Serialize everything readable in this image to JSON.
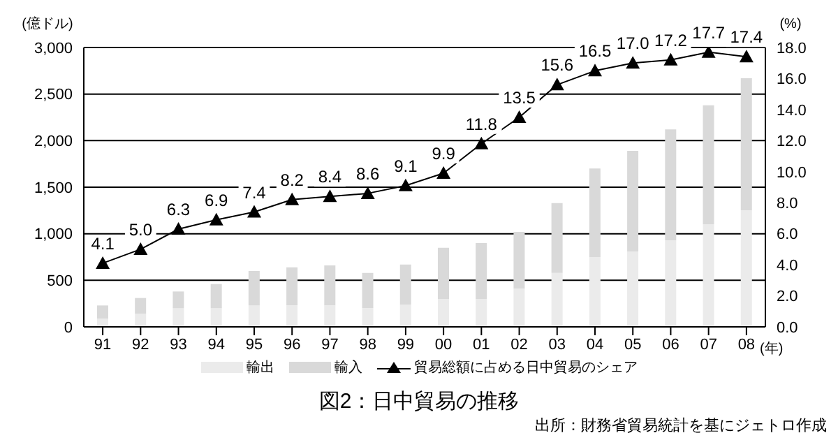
{
  "chart_data": {
    "type": "bar",
    "stacked": true,
    "title": "図2：日中貿易の推移",
    "annotations": [
      "出所：財務省貿易統計を基にジェトロ作成"
    ],
    "ylabel": "(億ドル)",
    "y2label": "(%)",
    "xlabel": "(年)",
    "categories": [
      "91",
      "92",
      "93",
      "94",
      "95",
      "96",
      "97",
      "98",
      "99",
      "00",
      "01",
      "02",
      "03",
      "04",
      "05",
      "06",
      "07",
      "08"
    ],
    "series": [
      {
        "name": "輸出",
        "color": "#ebebeb",
        "values": [
          90,
          140,
          200,
          200,
          230,
          230,
          230,
          200,
          240,
          300,
          300,
          410,
          580,
          750,
          810,
          930,
          1100,
          1250
        ]
      },
      {
        "name": "輸入",
        "color": "#d9d9d9",
        "values": [
          140,
          170,
          180,
          260,
          370,
          410,
          430,
          380,
          430,
          550,
          600,
          610,
          750,
          950,
          1080,
          1190,
          1280,
          1420
        ]
      },
      {
        "name": "貿易総額に占める日中貿易のシェア",
        "type": "line",
        "axis": "y2",
        "color": "#000000",
        "marker": "triangle",
        "values": [
          4.1,
          5.0,
          6.3,
          6.9,
          7.4,
          8.2,
          8.4,
          8.6,
          9.1,
          9.9,
          11.8,
          13.5,
          15.6,
          16.5,
          17.0,
          17.2,
          17.7,
          17.4
        ],
        "value_labels": [
          "4.1",
          "5.0",
          "6.3",
          "6.9",
          "7.4",
          "8.2",
          "8.4",
          "8.6",
          "9.1",
          "9.9",
          "11.8",
          "13.5",
          "15.6",
          "16.5",
          "17.0",
          "17.2",
          "17.7",
          "17.4"
        ]
      }
    ],
    "ylim": [
      0,
      3000
    ],
    "yticks": [
      0,
      {
        "value": 500,
        "label": "500"
      },
      {
        "value": 1000,
        "label": "1,000"
      },
      {
        "value": 1500,
        "label": "1,500"
      },
      {
        "value": 2000,
        "label": "2,000"
      },
      {
        "value": 2500,
        "label": "2,500"
      },
      {
        "value": 3000,
        "label": "3,000"
      }
    ],
    "y2lim": [
      0,
      18
    ],
    "y2ticks": [
      {
        "value": 0,
        "label": "0.0"
      },
      {
        "value": 2,
        "label": "2.0"
      },
      {
        "value": 4,
        "label": "4.0"
      },
      {
        "value": 6,
        "label": "6.0"
      },
      {
        "value": 8,
        "label": "8.0"
      },
      {
        "value": 10,
        "label": "10.0"
      },
      {
        "value": 12,
        "label": "12.0"
      },
      {
        "value": 14,
        "label": "14.0"
      },
      {
        "value": 16,
        "label": "16.0"
      },
      {
        "value": 18,
        "label": "18.0"
      }
    ],
    "grid": "y",
    "legend": "bottom"
  }
}
